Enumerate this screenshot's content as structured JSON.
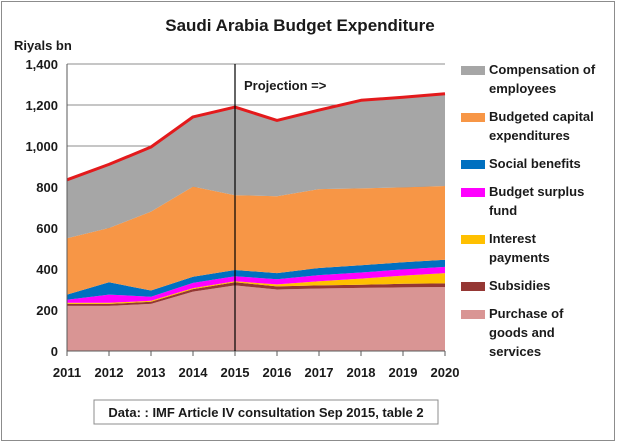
{
  "chart_data": {
    "type": "area",
    "title": "Saudi Arabia Budget Expenditure",
    "ylabel": "Riyals bn",
    "ylim": [
      0,
      1400
    ],
    "yticks": [
      0,
      200,
      400,
      600,
      800,
      1000,
      1200,
      1400
    ],
    "ytick_labels": [
      "0",
      "200",
      "400",
      "600",
      "800",
      "1,000",
      "1,200",
      "1,400"
    ],
    "x": [
      "2011",
      "2012",
      "2013",
      "2014",
      "2015",
      "2016",
      "2017",
      "2018",
      "2019",
      "2020"
    ],
    "grid": true,
    "legend_position": "right",
    "annotation": "Projection =>",
    "annotation_x": "2015",
    "source_note": "Data: : IMF Article IV consultation Sep 2015, table 2",
    "series": [
      {
        "name": "Purchase of goods and services",
        "color": "#d99594",
        "values": [
          220,
          220,
          230,
          290,
          320,
          300,
          305,
          308,
          310,
          312
        ]
      },
      {
        "name": "Subsidies",
        "color": "#953734",
        "values": [
          10,
          10,
          10,
          12,
          15,
          15,
          15,
          15,
          18,
          18
        ]
      },
      {
        "name": "Interest payments",
        "color": "#ffc000",
        "values": [
          5,
          5,
          5,
          5,
          5,
          10,
          20,
          30,
          40,
          50
        ]
      },
      {
        "name": "Budget surplus fund",
        "color": "#ff00ff",
        "values": [
          15,
          40,
          20,
          25,
          25,
          25,
          30,
          30,
          30,
          30
        ]
      },
      {
        "name": "Social benefits",
        "color": "#0070c0",
        "values": [
          25,
          60,
          30,
          30,
          30,
          30,
          35,
          35,
          35,
          35
        ]
      },
      {
        "name": "Budgeted capital expenditures",
        "color": "#f79646",
        "values": [
          275,
          265,
          385,
          440,
          365,
          375,
          385,
          375,
          365,
          360
        ]
      },
      {
        "name": "Compensation of employees",
        "color": "#a6a6a6",
        "values": [
          285,
          310,
          315,
          340,
          430,
          370,
          385,
          430,
          440,
          450
        ]
      }
    ],
    "total_line": {
      "color": "#e31a1c",
      "values": [
        835,
        910,
        995,
        1142,
        1190,
        1125,
        1175,
        1223,
        1238,
        1255
      ]
    },
    "legend": [
      {
        "lines": [
          "Compensation of",
          "employees"
        ],
        "color": "#a6a6a6"
      },
      {
        "lines": [
          "Budgeted capital",
          "expenditures"
        ],
        "color": "#f79646"
      },
      {
        "lines": [
          "Social benefits"
        ],
        "color": "#0070c0"
      },
      {
        "lines": [
          "Budget surplus",
          "fund"
        ],
        "color": "#ff00ff"
      },
      {
        "lines": [
          "Interest",
          "payments"
        ],
        "color": "#ffc000"
      },
      {
        "lines": [
          "Subsidies"
        ],
        "color": "#953734"
      },
      {
        "lines": [
          "Purchase of",
          "goods and",
          "services"
        ],
        "color": "#d99594"
      }
    ]
  }
}
